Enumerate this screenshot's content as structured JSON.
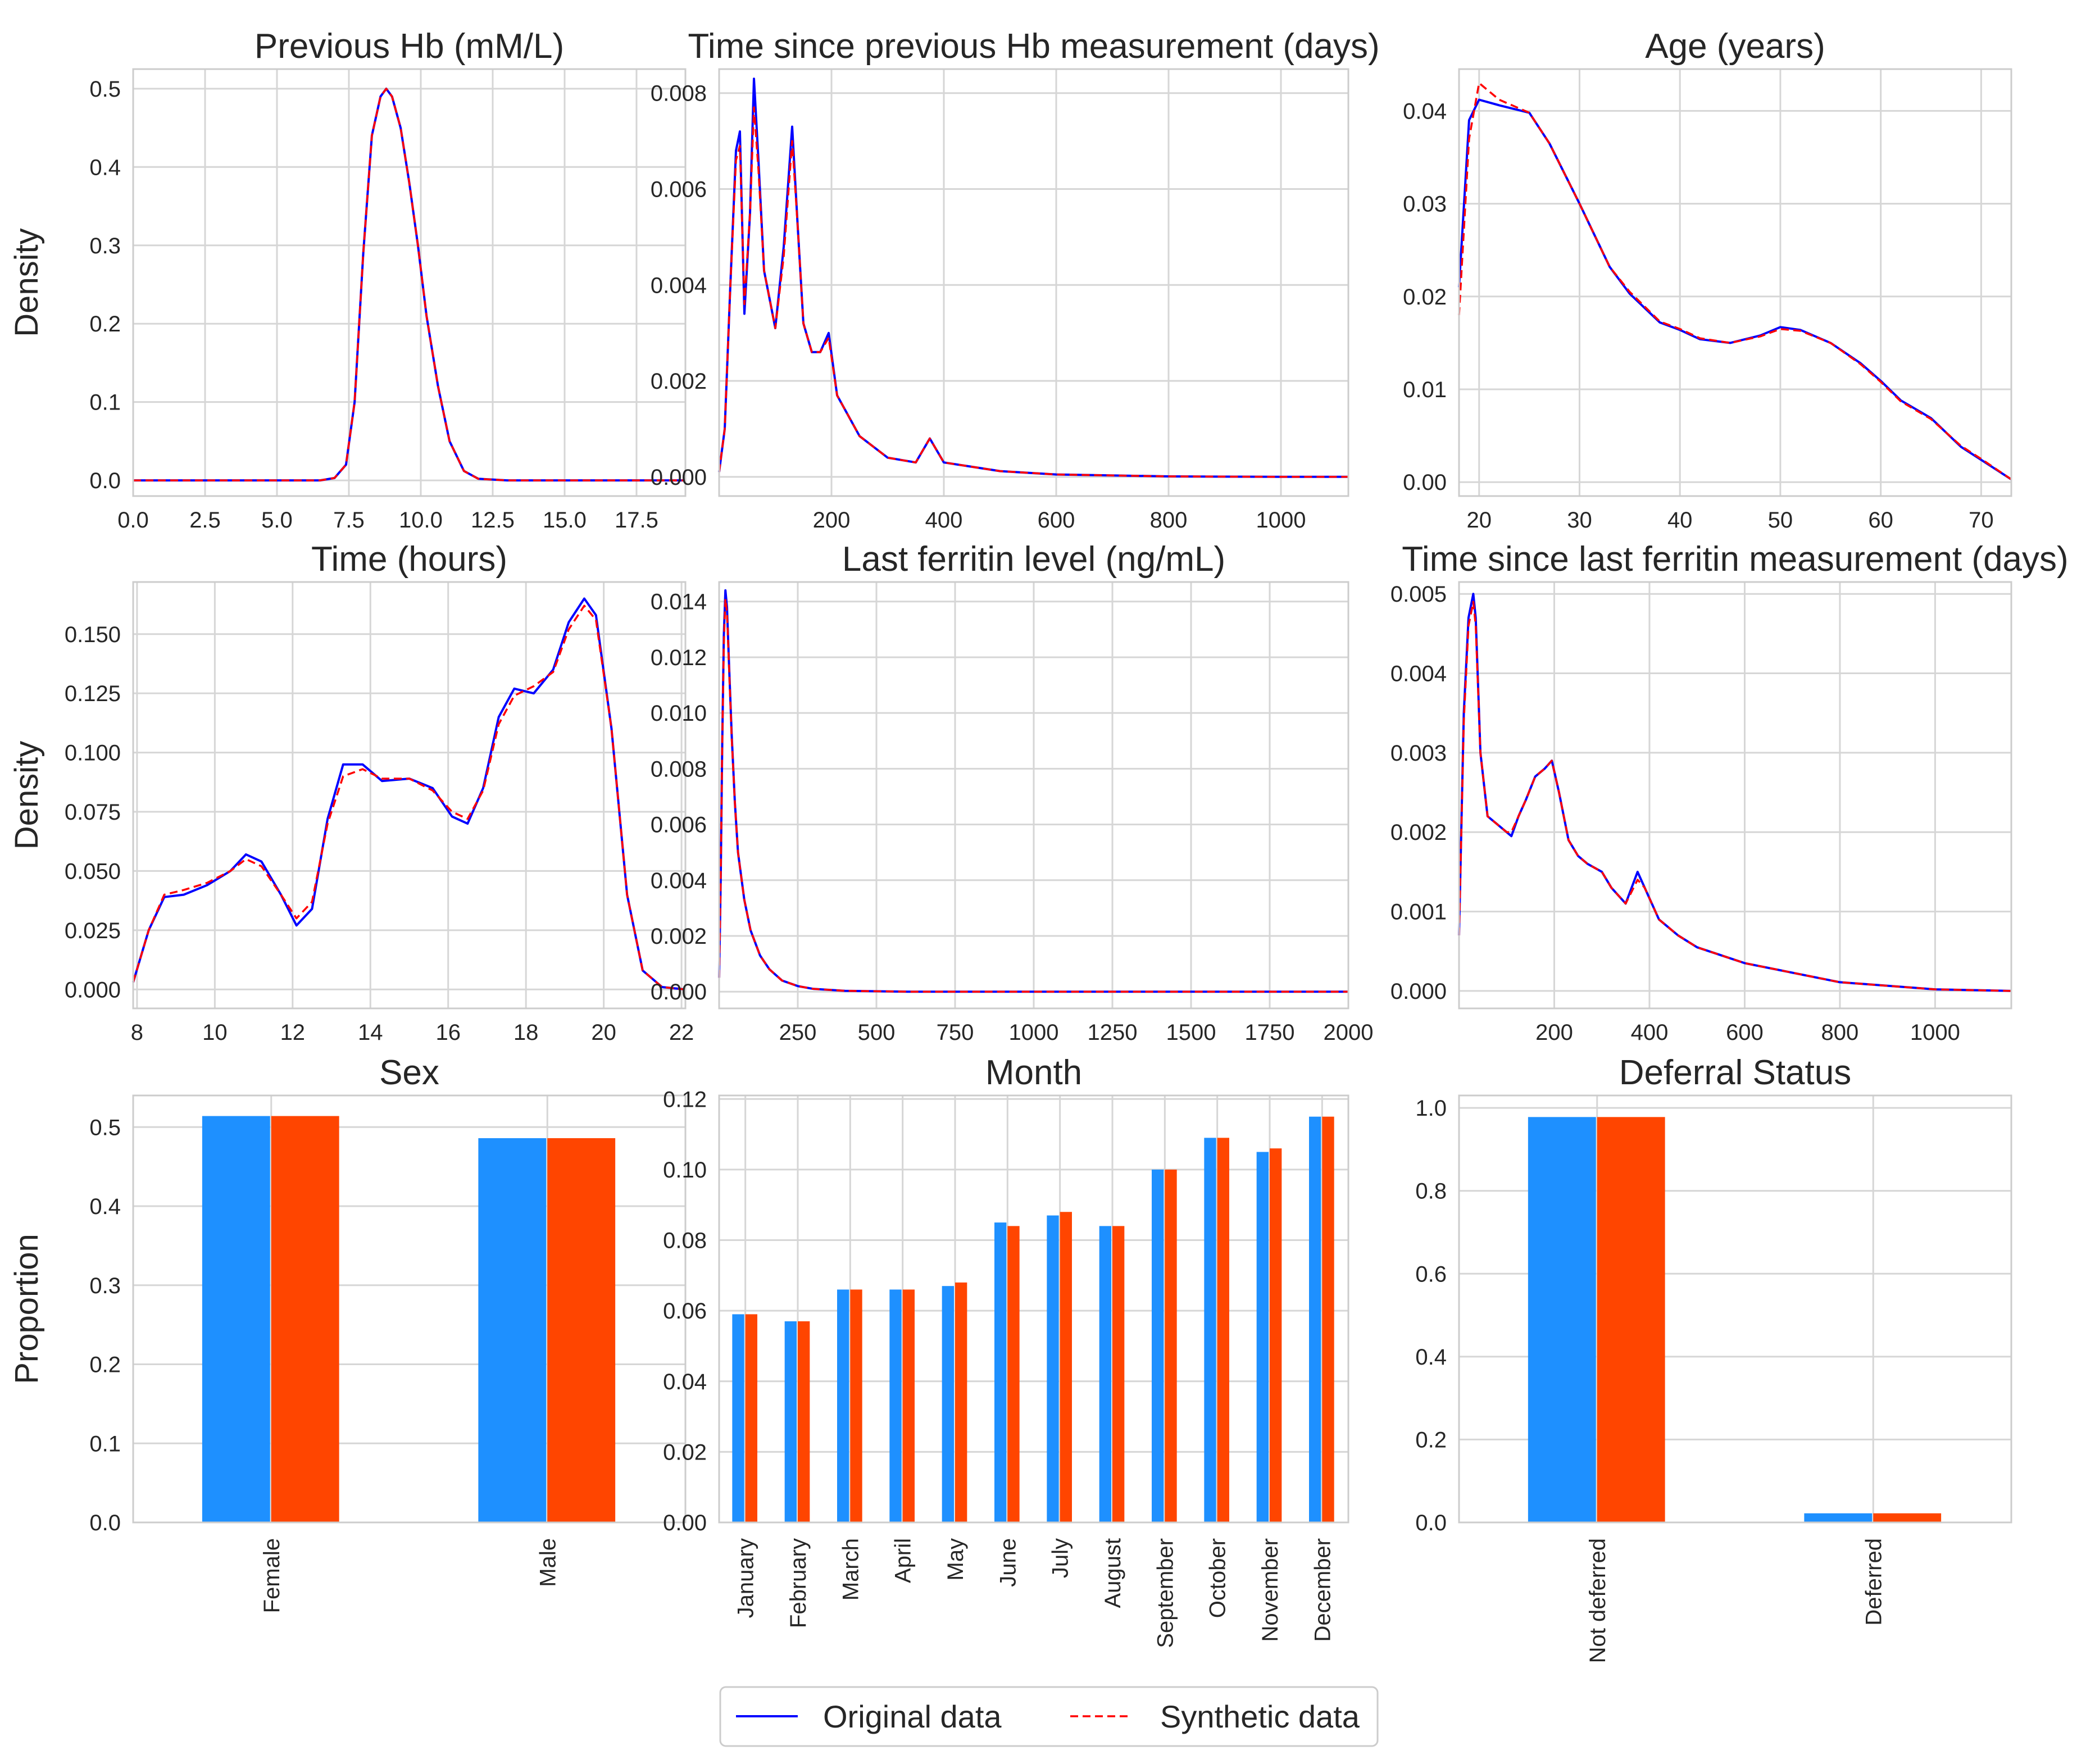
{
  "colors": {
    "original": "#0000ff",
    "synthetic": "#ff0000",
    "bar_original": "#1e90ff",
    "bar_synthetic": "#ff4500",
    "grid": "#d6d6d6"
  },
  "legend": {
    "original": "Original data",
    "synthetic": "Synthetic data"
  },
  "chart_data": [
    {
      "type": "line",
      "title": "Previous Hb (mM/L)",
      "ylabel": "Density",
      "xlim": [
        0,
        19.2
      ],
      "ylim": [
        -0.02,
        0.525
      ],
      "xticks": [
        0,
        2.5,
        5,
        7.5,
        10,
        12.5,
        15,
        17.5
      ],
      "xtick_labels": [
        "0.0",
        "2.5",
        "5.0",
        "7.5",
        "10.0",
        "12.5",
        "15.0",
        "17.5"
      ],
      "yticks": [
        0,
        0.1,
        0.2,
        0.3,
        0.4,
        0.5
      ],
      "ytick_labels": [
        "0.0",
        "0.1",
        "0.2",
        "0.3",
        "0.4",
        "0.5"
      ],
      "series": [
        {
          "name": "Original data",
          "x": [
            0,
            6.5,
            7.0,
            7.4,
            7.7,
            8.0,
            8.3,
            8.6,
            8.8,
            9.0,
            9.3,
            9.6,
            9.9,
            10.2,
            10.6,
            11.0,
            11.5,
            12.0,
            13,
            19.2
          ],
          "y": [
            0,
            0,
            0.003,
            0.02,
            0.1,
            0.29,
            0.44,
            0.49,
            0.5,
            0.49,
            0.45,
            0.38,
            0.3,
            0.21,
            0.12,
            0.05,
            0.012,
            0.002,
            0,
            0
          ]
        },
        {
          "name": "Synthetic data",
          "x": [
            0,
            6.5,
            7.0,
            7.4,
            7.7,
            8.0,
            8.3,
            8.6,
            8.8,
            9.0,
            9.3,
            9.6,
            9.9,
            10.2,
            10.6,
            11.0,
            11.5,
            12.0,
            13,
            19.2
          ],
          "y": [
            0,
            0,
            0.003,
            0.02,
            0.1,
            0.29,
            0.44,
            0.49,
            0.5,
            0.49,
            0.45,
            0.38,
            0.3,
            0.21,
            0.12,
            0.05,
            0.012,
            0.002,
            0,
            0
          ]
        }
      ]
    },
    {
      "type": "line",
      "title": "Time since previous Hb measurement (days)",
      "xlim": [
        0,
        1120
      ],
      "ylim": [
        -0.0004,
        0.0085
      ],
      "xticks": [
        200,
        400,
        600,
        800,
        1000
      ],
      "xtick_labels": [
        "200",
        "400",
        "600",
        "800",
        "1000"
      ],
      "yticks": [
        0,
        0.002,
        0.004,
        0.006,
        0.008
      ],
      "ytick_labels": [
        "0.000",
        "0.002",
        "0.004",
        "0.006",
        "0.008"
      ],
      "series": [
        {
          "name": "Original data",
          "x": [
            0,
            10,
            20,
            30,
            37,
            45,
            55,
            62,
            70,
            80,
            100,
            115,
            130,
            140,
            150,
            165,
            180,
            195,
            210,
            250,
            300,
            350,
            375,
            400,
            500,
            600,
            800,
            1000,
            1120
          ],
          "y": [
            0.0001,
            0.001,
            0.004,
            0.0068,
            0.0072,
            0.0034,
            0.0055,
            0.0083,
            0.0066,
            0.0043,
            0.0031,
            0.0048,
            0.0073,
            0.0052,
            0.0032,
            0.0026,
            0.0026,
            0.003,
            0.0017,
            0.00085,
            0.0004,
            0.0003,
            0.0008,
            0.0003,
            0.00012,
            5e-05,
            1e-05,
            0,
            0
          ]
        },
        {
          "name": "Synthetic data",
          "x": [
            0,
            10,
            20,
            30,
            37,
            45,
            55,
            62,
            70,
            80,
            100,
            115,
            130,
            140,
            150,
            165,
            180,
            195,
            210,
            250,
            300,
            350,
            375,
            400,
            500,
            600,
            800,
            1000,
            1120
          ],
          "y": [
            0.0001,
            0.001,
            0.004,
            0.0066,
            0.0069,
            0.0036,
            0.0055,
            0.0077,
            0.0064,
            0.0043,
            0.0031,
            0.0046,
            0.007,
            0.0052,
            0.0032,
            0.0026,
            0.0026,
            0.0029,
            0.0017,
            0.00085,
            0.0004,
            0.0003,
            0.0008,
            0.0003,
            0.00012,
            5e-05,
            1e-05,
            0,
            0
          ]
        }
      ]
    },
    {
      "type": "line",
      "title": "Age (years)",
      "xlim": [
        18,
        73
      ],
      "ylim": [
        -0.0015,
        0.0445
      ],
      "xticks": [
        20,
        30,
        40,
        50,
        60,
        70
      ],
      "xtick_labels": [
        "20",
        "30",
        "40",
        "50",
        "60",
        "70"
      ],
      "yticks": [
        0,
        0.01,
        0.02,
        0.03,
        0.04
      ],
      "ytick_labels": [
        "0.00",
        "0.01",
        "0.02",
        "0.03",
        "0.04"
      ],
      "series": [
        {
          "name": "Original data",
          "x": [
            18,
            19,
            20,
            22,
            25,
            27,
            30,
            33,
            35,
            38,
            40,
            42,
            45,
            48,
            50,
            52,
            55,
            58,
            60,
            62,
            65,
            68,
            70,
            73
          ],
          "y": [
            0.021,
            0.039,
            0.0412,
            0.0406,
            0.0398,
            0.0365,
            0.03,
            0.0232,
            0.0203,
            0.0172,
            0.0164,
            0.0154,
            0.015,
            0.0158,
            0.0167,
            0.0164,
            0.015,
            0.0128,
            0.0109,
            0.0088,
            0.0069,
            0.0038,
            0.0024,
            0.0003
          ]
        },
        {
          "name": "Synthetic data",
          "x": [
            18,
            19,
            20,
            22,
            25,
            27,
            30,
            33,
            35,
            38,
            40,
            42,
            45,
            48,
            50,
            52,
            55,
            58,
            60,
            62,
            65,
            68,
            70,
            73
          ],
          "y": [
            0.018,
            0.037,
            0.043,
            0.0412,
            0.0398,
            0.0365,
            0.03,
            0.0232,
            0.0205,
            0.0173,
            0.0165,
            0.0155,
            0.015,
            0.0157,
            0.0165,
            0.0163,
            0.015,
            0.0127,
            0.0108,
            0.0087,
            0.0068,
            0.0039,
            0.0025,
            0.0003
          ]
        }
      ]
    },
    {
      "type": "line",
      "title": "Time (hours)",
      "ylabel": "Density",
      "xlim": [
        7.9,
        22.1
      ],
      "ylim": [
        -0.008,
        0.172
      ],
      "xticks": [
        8,
        10,
        12,
        14,
        16,
        18,
        20,
        22
      ],
      "xtick_labels": [
        "8",
        "10",
        "12",
        "14",
        "16",
        "18",
        "20",
        "22"
      ],
      "yticks": [
        0,
        0.025,
        0.05,
        0.075,
        0.1,
        0.125,
        0.15
      ],
      "ytick_labels": [
        "0.000",
        "0.025",
        "0.050",
        "0.075",
        "0.100",
        "0.125",
        "0.150"
      ],
      "series": [
        {
          "name": "Original data",
          "x": [
            7.9,
            8.3,
            8.7,
            9.2,
            9.8,
            10.4,
            10.8,
            11.2,
            11.7,
            12.1,
            12.5,
            12.9,
            13.3,
            13.8,
            14.3,
            15,
            15.6,
            16.1,
            16.5,
            16.9,
            17.3,
            17.7,
            18.2,
            18.7,
            19.1,
            19.5,
            19.8,
            20.2,
            20.6,
            21,
            21.5,
            22.1
          ],
          "y": [
            0.003,
            0.025,
            0.039,
            0.04,
            0.044,
            0.05,
            0.057,
            0.054,
            0.04,
            0.027,
            0.034,
            0.072,
            0.095,
            0.095,
            0.088,
            0.089,
            0.085,
            0.073,
            0.07,
            0.085,
            0.115,
            0.127,
            0.125,
            0.135,
            0.155,
            0.165,
            0.158,
            0.11,
            0.04,
            0.008,
            0.001,
            0
          ]
        },
        {
          "name": "Synthetic data",
          "x": [
            7.9,
            8.3,
            8.7,
            9.2,
            9.8,
            10.4,
            10.8,
            11.2,
            11.7,
            12.1,
            12.5,
            12.9,
            13.3,
            13.8,
            14.3,
            15,
            15.6,
            16.1,
            16.5,
            16.9,
            17.3,
            17.7,
            18.2,
            18.7,
            19.1,
            19.5,
            19.8,
            20.2,
            20.6,
            21,
            21.5,
            22.1
          ],
          "y": [
            0.003,
            0.025,
            0.04,
            0.042,
            0.045,
            0.05,
            0.055,
            0.052,
            0.04,
            0.03,
            0.037,
            0.07,
            0.09,
            0.093,
            0.089,
            0.089,
            0.084,
            0.075,
            0.072,
            0.084,
            0.112,
            0.124,
            0.128,
            0.134,
            0.152,
            0.162,
            0.156,
            0.11,
            0.04,
            0.008,
            0.001,
            0
          ]
        }
      ]
    },
    {
      "type": "line",
      "title": "Last ferritin level (ng/mL)",
      "xlim": [
        0,
        2000
      ],
      "ylim": [
        -0.0006,
        0.0147
      ],
      "xticks": [
        250,
        500,
        750,
        1000,
        1250,
        1500,
        1750,
        2000
      ],
      "xtick_labels": [
        "250",
        "500",
        "750",
        "1000",
        "1250",
        "1500",
        "1750",
        "2000"
      ],
      "yticks": [
        0,
        0.002,
        0.004,
        0.006,
        0.008,
        0.01,
        0.012,
        0.014
      ],
      "ytick_labels": [
        "0.000",
        "0.002",
        "0.004",
        "0.006",
        "0.008",
        "0.010",
        "0.012",
        "0.014"
      ],
      "series": [
        {
          "name": "Original data",
          "x": [
            0,
            5,
            10,
            15,
            20,
            25,
            30,
            40,
            50,
            60,
            80,
            100,
            130,
            160,
            200,
            250,
            300,
            400,
            600,
            1000,
            2000
          ],
          "y": [
            0.0005,
            0.004,
            0.009,
            0.0128,
            0.0144,
            0.0138,
            0.0122,
            0.0092,
            0.0068,
            0.005,
            0.0033,
            0.0022,
            0.0013,
            0.0008,
            0.0004,
            0.0002,
            0.0001,
            3e-05,
            0,
            0,
            0
          ]
        },
        {
          "name": "Synthetic data",
          "x": [
            0,
            5,
            10,
            15,
            20,
            25,
            30,
            40,
            50,
            60,
            80,
            100,
            130,
            160,
            200,
            250,
            300,
            400,
            600,
            1000,
            2000
          ],
          "y": [
            0.0005,
            0.004,
            0.009,
            0.0125,
            0.0141,
            0.0136,
            0.0121,
            0.0091,
            0.0068,
            0.005,
            0.0033,
            0.0022,
            0.0013,
            0.0008,
            0.0004,
            0.0002,
            0.0001,
            3e-05,
            0,
            0,
            0
          ]
        }
      ]
    },
    {
      "type": "line",
      "title": "Time since last ferritin measurement (days)",
      "xlim": [
        0,
        1160
      ],
      "ylim": [
        -0.00022,
        0.00515
      ],
      "xticks": [
        200,
        400,
        600,
        800,
        1000
      ],
      "xtick_labels": [
        "200",
        "400",
        "600",
        "800",
        "1000"
      ],
      "yticks": [
        0,
        0.001,
        0.002,
        0.003,
        0.004,
        0.005
      ],
      "ytick_labels": [
        "0.000",
        "0.001",
        "0.002",
        "0.003",
        "0.004",
        "0.005"
      ],
      "series": [
        {
          "name": "Original data",
          "x": [
            0,
            10,
            20,
            30,
            35,
            45,
            60,
            80,
            100,
            110,
            125,
            140,
            160,
            180,
            195,
            210,
            230,
            250,
            270,
            300,
            320,
            350,
            375,
            390,
            420,
            460,
            500,
            550,
            600,
            700,
            800,
            1000,
            1160
          ],
          "y": [
            0.0007,
            0.0035,
            0.0047,
            0.005,
            0.0047,
            0.003,
            0.0022,
            0.0021,
            0.002,
            0.00195,
            0.0022,
            0.0024,
            0.0027,
            0.0028,
            0.0029,
            0.0025,
            0.0019,
            0.0017,
            0.0016,
            0.0015,
            0.0013,
            0.0011,
            0.0015,
            0.0013,
            0.0009,
            0.0007,
            0.00055,
            0.00045,
            0.00035,
            0.00023,
            0.00011,
            2e-05,
            0
          ]
        },
        {
          "name": "Synthetic data",
          "x": [
            0,
            10,
            20,
            30,
            35,
            45,
            60,
            80,
            100,
            110,
            125,
            140,
            160,
            180,
            195,
            210,
            230,
            250,
            270,
            300,
            320,
            350,
            375,
            390,
            420,
            460,
            500,
            550,
            600,
            700,
            800,
            1000,
            1160
          ],
          "y": [
            0.0007,
            0.0034,
            0.0046,
            0.0049,
            0.0046,
            0.003,
            0.0022,
            0.0021,
            0.002,
            0.002,
            0.0022,
            0.0024,
            0.0027,
            0.0028,
            0.0029,
            0.0025,
            0.0019,
            0.0017,
            0.0016,
            0.0015,
            0.0013,
            0.0011,
            0.0014,
            0.0013,
            0.0009,
            0.0007,
            0.00055,
            0.00045,
            0.00035,
            0.00023,
            0.00011,
            2e-05,
            0
          ]
        }
      ]
    },
    {
      "type": "bar",
      "title": "Sex",
      "ylabel": "Proportion",
      "categories": [
        "Female",
        "Male"
      ],
      "ylim": [
        0,
        0.54
      ],
      "yticks": [
        0,
        0.1,
        0.2,
        0.3,
        0.4,
        0.5
      ],
      "ytick_labels": [
        "0.0",
        "0.1",
        "0.2",
        "0.3",
        "0.4",
        "0.5"
      ],
      "series": [
        {
          "name": "Original data",
          "values": [
            0.514,
            0.486
          ]
        },
        {
          "name": "Synthetic data",
          "values": [
            0.514,
            0.486
          ]
        }
      ]
    },
    {
      "type": "bar",
      "title": "Month",
      "categories": [
        "January",
        "February",
        "March",
        "April",
        "May",
        "June",
        "July",
        "August",
        "September",
        "October",
        "November",
        "December"
      ],
      "ylim": [
        0,
        0.121
      ],
      "yticks": [
        0,
        0.02,
        0.04,
        0.06,
        0.08,
        0.1,
        0.12
      ],
      "ytick_labels": [
        "0.00",
        "0.02",
        "0.04",
        "0.06",
        "0.08",
        "0.10",
        "0.12"
      ],
      "series": [
        {
          "name": "Original data",
          "values": [
            0.059,
            0.057,
            0.066,
            0.066,
            0.067,
            0.085,
            0.087,
            0.084,
            0.1,
            0.109,
            0.105,
            0.115
          ]
        },
        {
          "name": "Synthetic data",
          "values": [
            0.059,
            0.057,
            0.066,
            0.066,
            0.068,
            0.084,
            0.088,
            0.084,
            0.1,
            0.109,
            0.106,
            0.115
          ]
        }
      ]
    },
    {
      "type": "bar",
      "title": "Deferral Status",
      "categories": [
        "Not deferred",
        "Deferred"
      ],
      "ylim": [
        0,
        1.03
      ],
      "yticks": [
        0,
        0.2,
        0.4,
        0.6,
        0.8,
        1.0
      ],
      "ytick_labels": [
        "0.0",
        "0.2",
        "0.4",
        "0.6",
        "0.8",
        "1.0"
      ],
      "series": [
        {
          "name": "Original data",
          "values": [
            0.978,
            0.022
          ]
        },
        {
          "name": "Synthetic data",
          "values": [
            0.978,
            0.022
          ]
        }
      ]
    }
  ]
}
